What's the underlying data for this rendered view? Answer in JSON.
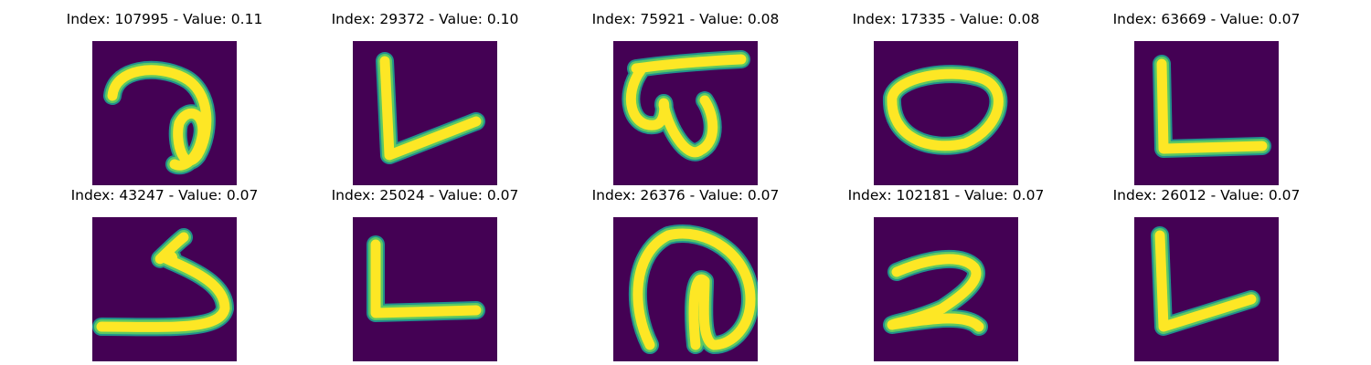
{
  "colors": {
    "background": "#440154",
    "stroke_core": "#fde725",
    "stroke_mid": "#5ec962",
    "stroke_edge": "#21918c"
  },
  "panels": [
    {
      "title": "Index: 107995 - Value: 0.11",
      "glyph": "curl-a"
    },
    {
      "title": "Index: 29372 - Value: 0.10",
      "glyph": "L-slant"
    },
    {
      "title": "Index: 75921 - Value: 0.08",
      "glyph": "omega-bar"
    },
    {
      "title": "Index: 17335 - Value: 0.08",
      "glyph": "oval"
    },
    {
      "title": "Index: 63669 - Value: 0.07",
      "glyph": "L-flat"
    },
    {
      "title": "Index: 43247 - Value: 0.07",
      "glyph": "s-hook"
    },
    {
      "title": "Index: 25024 - Value: 0.07",
      "glyph": "L-thick"
    },
    {
      "title": "Index: 26376 - Value: 0.07",
      "glyph": "loop-n"
    },
    {
      "title": "Index: 102181 - Value: 0.07",
      "glyph": "two"
    },
    {
      "title": "Index: 26012 - Value: 0.07",
      "glyph": "L-v"
    }
  ]
}
